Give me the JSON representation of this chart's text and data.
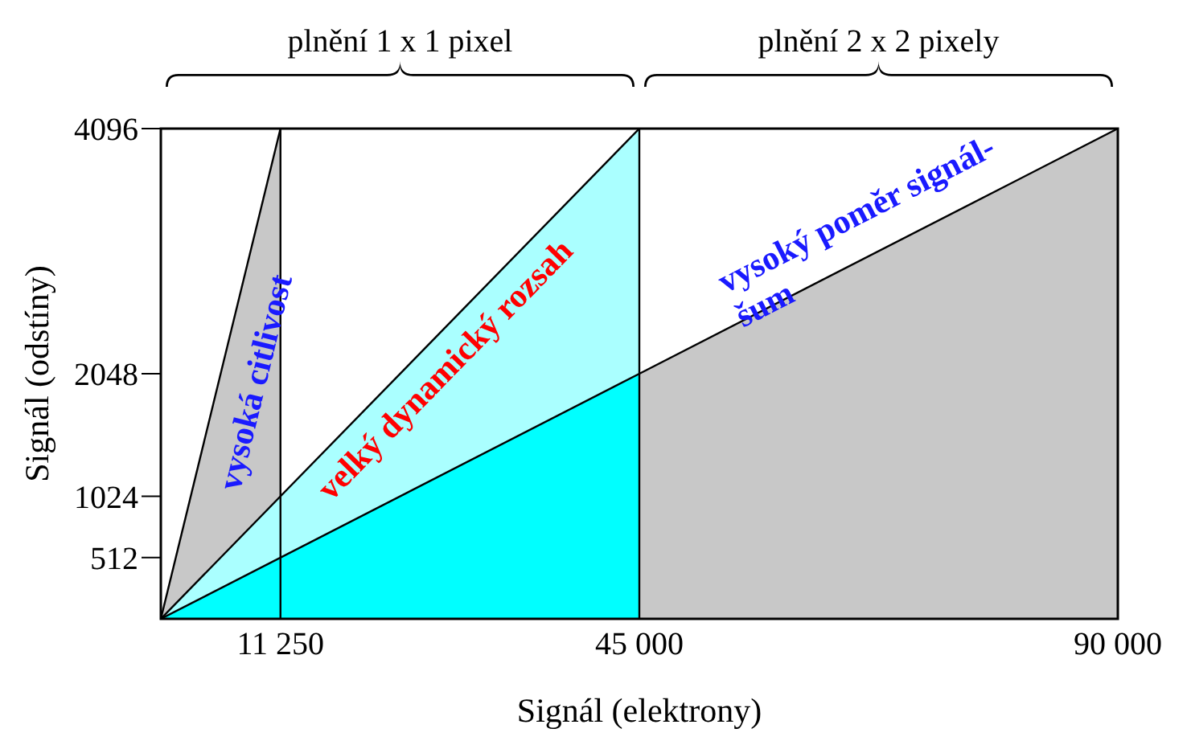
{
  "chart_data": {
    "type": "area",
    "xlabel": "Signál (elektrony)",
    "ylabel": "Signál (odstíny)",
    "xlim": [
      0,
      90000
    ],
    "ylim": [
      0,
      4096
    ],
    "xticks": [
      {
        "value": 11250,
        "label": "11 250"
      },
      {
        "value": 45000,
        "label": "45 000"
      },
      {
        "value": 90000,
        "label": "90 000"
      }
    ],
    "yticks": [
      512,
      1024,
      2048,
      4096
    ],
    "series": [
      {
        "color": "#c8c8c8",
        "x": [
          0,
          11250
        ],
        "values": [
          0,
          4096
        ]
      },
      {
        "color": "#aaffff",
        "x": [
          0,
          45000
        ],
        "values": [
          0,
          4096
        ]
      },
      {
        "color": "#00ffff",
        "x": [
          0,
          45000
        ],
        "values": [
          0,
          2048
        ]
      },
      {
        "color": "#c8c8c8",
        "x": [
          45000,
          90000
        ],
        "values": [
          2048,
          4096
        ]
      }
    ],
    "ref_lines": [
      {
        "axis": "x",
        "value": 11250
      },
      {
        "axis": "x",
        "value": 45000
      }
    ],
    "annotations": [
      "plnění 1 x 1 pixel",
      "plnění 2 x 2 pixely",
      "vysoká citlivost",
      "velký dynamický rozsah",
      "vysoký poměr signál-šum"
    ],
    "grid": false
  }
}
